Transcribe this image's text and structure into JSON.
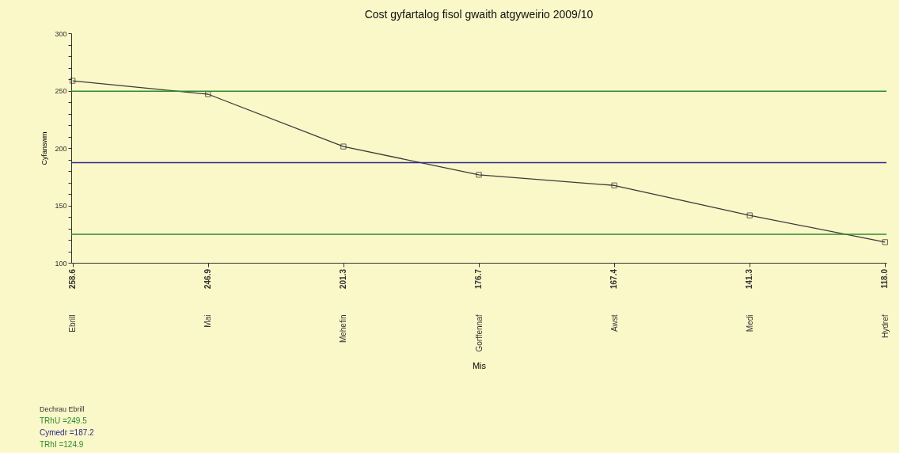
{
  "chart_data": {
    "type": "line",
    "title": "Cost gyfartalog fisol gwaith atgyweirio 2009/10",
    "xlabel": "Mis",
    "ylabel": "Cyfanswm",
    "categories": [
      "Ebrill",
      "Mai",
      "Mehefin",
      "Gorffennaf",
      "Awst",
      "Medi",
      "Hydref"
    ],
    "series": [
      {
        "color": "#3a3a3a",
        "values": [
          258.6,
          246.9,
          201.3,
          176.7,
          167.4,
          141.3,
          118.0
        ],
        "value_labels": [
          "258.6",
          "246.9",
          "201.3",
          "176.7",
          "167.4",
          "141.3",
          "118.0"
        ]
      }
    ],
    "ylim": [
      100,
      300
    ],
    "yticks": [
      100,
      {
        "value": 110,
        "label": null
      },
      {
        "value": 120,
        "label": null
      },
      {
        "value": 130,
        "label": null
      },
      {
        "value": 140,
        "label": null
      },
      150,
      {
        "value": 160,
        "label": null
      },
      {
        "value": 170,
        "label": null
      },
      {
        "value": 180,
        "label": null
      },
      {
        "value": 190,
        "label": null
      },
      200,
      {
        "value": 210,
        "label": null
      },
      {
        "value": 220,
        "label": null
      },
      {
        "value": 230,
        "label": null
      },
      {
        "value": 240,
        "label": null
      },
      250,
      {
        "value": 260,
        "label": null
      },
      {
        "value": 270,
        "label": null
      },
      {
        "value": 280,
        "label": null
      },
      {
        "value": 290,
        "label": null
      },
      300
    ],
    "ref_lines": [
      {
        "axis": "y",
        "value": 249.5,
        "label": "TRhU =249.5",
        "color": "#2e8b2e"
      },
      {
        "axis": "y",
        "value": 187.2,
        "label": "Cymedr =187.2",
        "color": "#2a2a8c"
      },
      {
        "axis": "y",
        "value": 124.9,
        "label": "TRhI =124.9",
        "color": "#2e8b2e"
      }
    ],
    "annotations": [
      "Dechrau   Ebrill"
    ],
    "marker": "square",
    "grid": false
  }
}
